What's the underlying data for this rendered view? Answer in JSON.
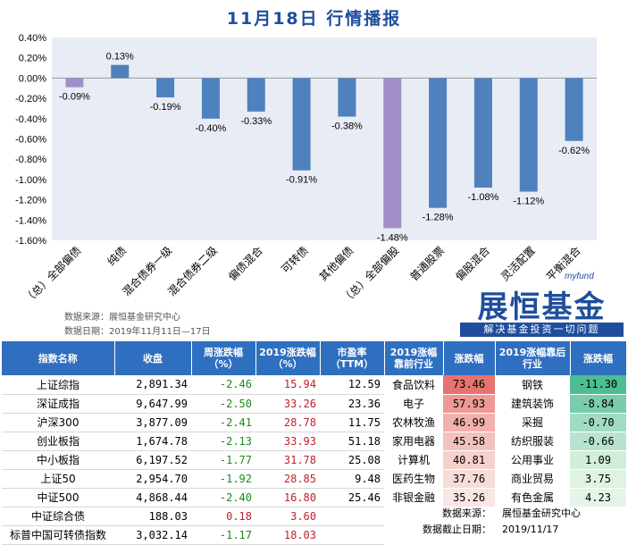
{
  "title": "11月18日  行情播报",
  "chart_data": {
    "type": "bar",
    "categories": [
      "（总）全部偏债",
      "纯债",
      "混合债券一级",
      "混合债券二级",
      "偏债混合",
      "可转债",
      "其他偏债",
      "（总）全部偏股",
      "普通股票",
      "偏股混合",
      "灵活配置",
      "平衡混合"
    ],
    "values": [
      -0.09,
      0.13,
      -0.19,
      -0.4,
      -0.33,
      -0.91,
      -0.38,
      -1.48,
      -1.28,
      -1.08,
      -1.12,
      -0.62
    ],
    "value_labels": [
      "-0.09%",
      "0.13%",
      "-0.19%",
      "-0.40%",
      "-0.33%",
      "-0.91%",
      "-0.38%",
      "-1.48%",
      "-1.28%",
      "-1.08%",
      "-1.12%",
      "-0.62%"
    ],
    "highlight_indices": [
      0,
      7
    ],
    "ylim": [
      -1.6,
      0.4
    ],
    "yticks": [
      "0.40%",
      "0.20%",
      "0.00%",
      "-0.20%",
      "-0.40%",
      "-0.60%",
      "-0.80%",
      "-1.00%",
      "-1.20%",
      "-1.40%",
      "-1.60%"
    ],
    "grid": false,
    "colors": {
      "bar": "#4f81bd",
      "highlight": "#a190c8",
      "plot_bg": "#e8ecf5"
    }
  },
  "source_top": {
    "line1": "数据来源：展恒基金研究中心",
    "line2": "数据日期：2019年11月11日—17日"
  },
  "logo": {
    "sub": "myfund",
    "main": "展恒基金",
    "tag": "解决基金投资一切问题"
  },
  "table": {
    "headers": [
      "指数名称",
      "收盘",
      "周涨跌幅（%）",
      "2019涨跌幅（%）",
      "市盈率（TTM）",
      "2019涨幅靠前行业",
      "涨跌幅",
      "2019涨幅靠后行业",
      "涨跌幅"
    ],
    "rows": [
      {
        "name": "上证综指",
        "close": "2,891.34",
        "week": "-2.46",
        "ytd": "15.94",
        "pe": "12.59",
        "top_ind": "食品饮料",
        "top_val": "73.46",
        "bot_ind": "钢铁",
        "bot_val": "-11.30"
      },
      {
        "name": "深证成指",
        "close": "9,647.99",
        "week": "-2.50",
        "ytd": "33.26",
        "pe": "23.36",
        "top_ind": "电子",
        "top_val": "57.93",
        "bot_ind": "建筑装饰",
        "bot_val": "-8.84"
      },
      {
        "name": "沪深300",
        "close": "3,877.09",
        "week": "-2.41",
        "ytd": "28.78",
        "pe": "11.75",
        "top_ind": "农林牧渔",
        "top_val": "46.99",
        "bot_ind": "采掘",
        "bot_val": "-0.70"
      },
      {
        "name": "创业板指",
        "close": "1,674.78",
        "week": "-2.13",
        "ytd": "33.93",
        "pe": "51.18",
        "top_ind": "家用电器",
        "top_val": "45.58",
        "bot_ind": "纺织服装",
        "bot_val": "-0.66"
      },
      {
        "name": "中小板指",
        "close": "6,197.52",
        "week": "-1.77",
        "ytd": "31.78",
        "pe": "25.08",
        "top_ind": "计算机",
        "top_val": "40.81",
        "bot_ind": "公用事业",
        "bot_val": "1.09"
      },
      {
        "name": "上证50",
        "close": "2,954.70",
        "week": "-1.92",
        "ytd": "28.85",
        "pe": "9.48",
        "top_ind": "医药生物",
        "top_val": "37.76",
        "bot_ind": "商业贸易",
        "bot_val": "3.75"
      },
      {
        "name": "中证500",
        "close": "4,868.44",
        "week": "-2.40",
        "ytd": "16.80",
        "pe": "25.46",
        "top_ind": "非银金融",
        "top_val": "35.26",
        "bot_ind": "有色金属",
        "bot_val": "4.23"
      },
      {
        "name": "中证综合债",
        "close": "188.03",
        "week": "0.18",
        "ytd": "3.60",
        "pe": "",
        "top_ind": "",
        "top_val": "",
        "bot_ind": "",
        "bot_val": ""
      },
      {
        "name": "标普中国可转债指数",
        "close": "3,032.14",
        "week": "-1.17",
        "ytd": "18.03",
        "pe": "",
        "top_ind": "",
        "top_val": "",
        "bot_ind": "",
        "bot_val": ""
      }
    ],
    "top_colors": [
      "#e8736e",
      "#ee9a94",
      "#f2b1ab",
      "#f4c2bc",
      "#f6d0cb",
      "#f8dcd8",
      "#fae6e3"
    ],
    "bot_colors": [
      "#4dbd92",
      "#79cdab",
      "#a0dbc2",
      "#b8e3cf",
      "#d2edd9",
      "#e0f2e3",
      "#e7f5e8"
    ]
  },
  "footer": {
    "source_key": "数据来源：",
    "source_val": "展恒基金研究中心",
    "date_key": "数据截止日期：",
    "date_val": "2019/11/17"
  }
}
